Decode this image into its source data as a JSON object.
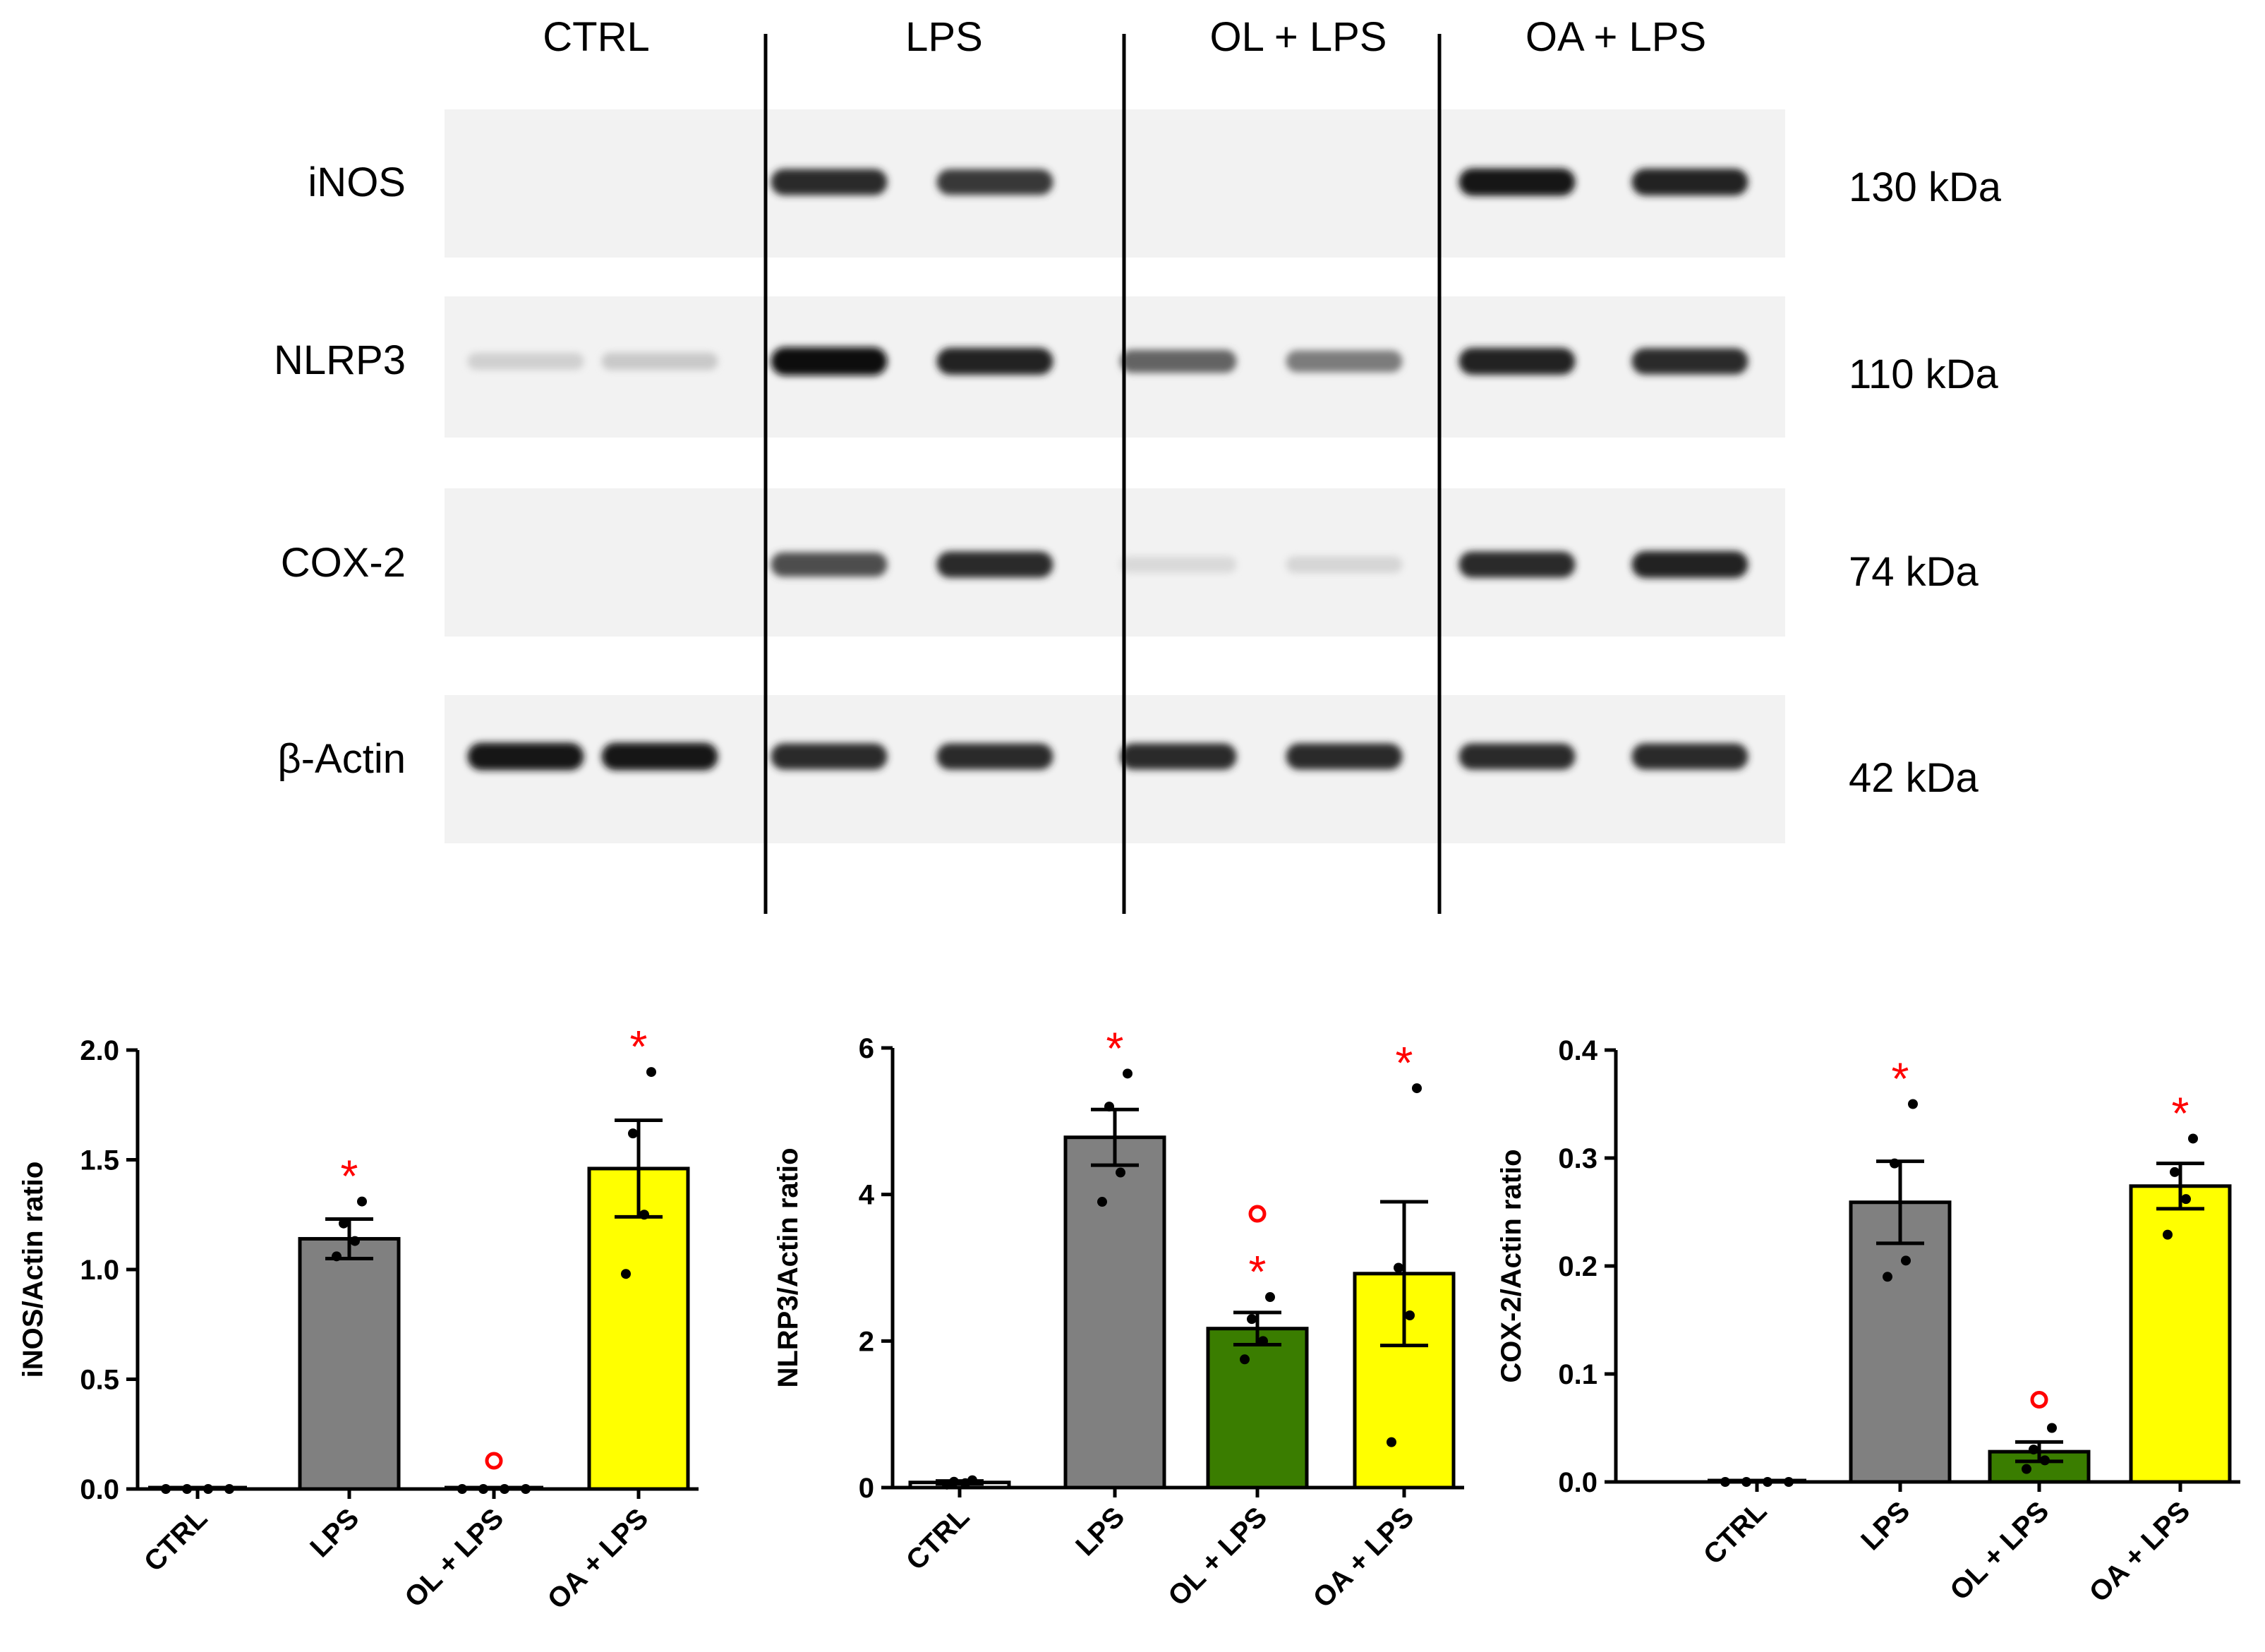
{
  "blot": {
    "groups": [
      "CTRL",
      "LPS",
      "OL + LPS",
      "OA + LPS"
    ],
    "proteins": [
      {
        "name": "iNOS",
        "kda": "130 kDa",
        "intensities": [
          0,
          0,
          0.85,
          0.8,
          0,
          0,
          0.95,
          0.9
        ]
      },
      {
        "name": "NLRP3",
        "kda": "110 kDa",
        "intensities": [
          0.12,
          0.15,
          1.0,
          0.9,
          0.6,
          0.5,
          0.9,
          0.85
        ]
      },
      {
        "name": "COX-2",
        "kda": "74 kDa",
        "intensities": [
          0,
          0,
          0.7,
          0.85,
          0.08,
          0.1,
          0.85,
          0.9
        ]
      },
      {
        "name": "β-Actin",
        "kda": "42 kDa",
        "intensities": [
          0.95,
          0.95,
          0.85,
          0.85,
          0.85,
          0.85,
          0.85,
          0.85
        ]
      }
    ]
  },
  "colors": {
    "ctrl": "#ffffff",
    "lps": "#808080",
    "ol_lps": "#3a7d00",
    "oa_lps": "#ffff00",
    "significance": "#ff0000"
  },
  "chart_data": [
    {
      "type": "bar",
      "ylabel": "iNOS/Actin ratio",
      "categories": [
        "CTRL",
        "LPS",
        "OL + LPS",
        "OA + LPS"
      ],
      "values": [
        0.0,
        1.14,
        0.0,
        1.46
      ],
      "sem": [
        0.0,
        0.09,
        0.0,
        0.22
      ],
      "points": [
        [
          0,
          0,
          0,
          0
        ],
        [
          1.06,
          1.13,
          1.21,
          1.31
        ],
        [
          0,
          0,
          0,
          0
        ],
        [
          0.98,
          1.25,
          1.62,
          1.9
        ]
      ],
      "ylim": [
        0,
        2.0
      ],
      "yticks": [
        "0.0",
        "0.5",
        "1.0",
        "1.5",
        "2.0"
      ],
      "marks": [
        {
          "category": "LPS",
          "symbol": "*"
        },
        {
          "category": "OL + LPS",
          "symbol": "o"
        },
        {
          "category": "OA + LPS",
          "symbol": "*"
        }
      ]
    },
    {
      "type": "bar",
      "ylabel": "NLRP3/Actin ratio",
      "categories": [
        "CTRL",
        "LPS",
        "OL + LPS",
        "OA + LPS"
      ],
      "values": [
        0.07,
        4.78,
        2.17,
        2.92
      ],
      "sem": [
        0.02,
        0.38,
        0.22,
        0.98
      ],
      "points": [
        [
          0.04,
          0.06,
          0.08,
          0.1
        ],
        [
          3.9,
          4.3,
          5.2,
          5.65
        ],
        [
          1.75,
          2.0,
          2.3,
          2.6
        ],
        [
          0.62,
          2.35,
          3.0,
          5.45
        ]
      ],
      "ylim": [
        0,
        6
      ],
      "yticks": [
        "0",
        "2",
        "4",
        "6"
      ],
      "marks": [
        {
          "category": "LPS",
          "symbol": "*"
        },
        {
          "category": "OL + LPS",
          "symbol": "o*"
        },
        {
          "category": "OA + LPS",
          "symbol": "*"
        }
      ]
    },
    {
      "type": "bar",
      "ylabel": "COX-2/Actin ratio",
      "categories": [
        "CTRL",
        "LPS",
        "OL + LPS",
        "OA + LPS"
      ],
      "values": [
        0.0,
        0.259,
        0.028,
        0.274
      ],
      "sem": [
        0.0,
        0.038,
        0.009,
        0.021
      ],
      "points": [
        [
          0,
          0,
          0,
          0
        ],
        [
          0.19,
          0.205,
          0.295,
          0.35
        ],
        [
          0.012,
          0.02,
          0.03,
          0.05
        ],
        [
          0.229,
          0.262,
          0.287,
          0.318
        ]
      ],
      "ylim": [
        0,
        0.4
      ],
      "yticks": [
        "0.0",
        "0.1",
        "0.2",
        "0.3",
        "0.4"
      ],
      "marks": [
        {
          "category": "LPS",
          "symbol": "*"
        },
        {
          "category": "OL + LPS",
          "symbol": "o"
        },
        {
          "category": "OA + LPS",
          "symbol": "*"
        }
      ]
    }
  ]
}
